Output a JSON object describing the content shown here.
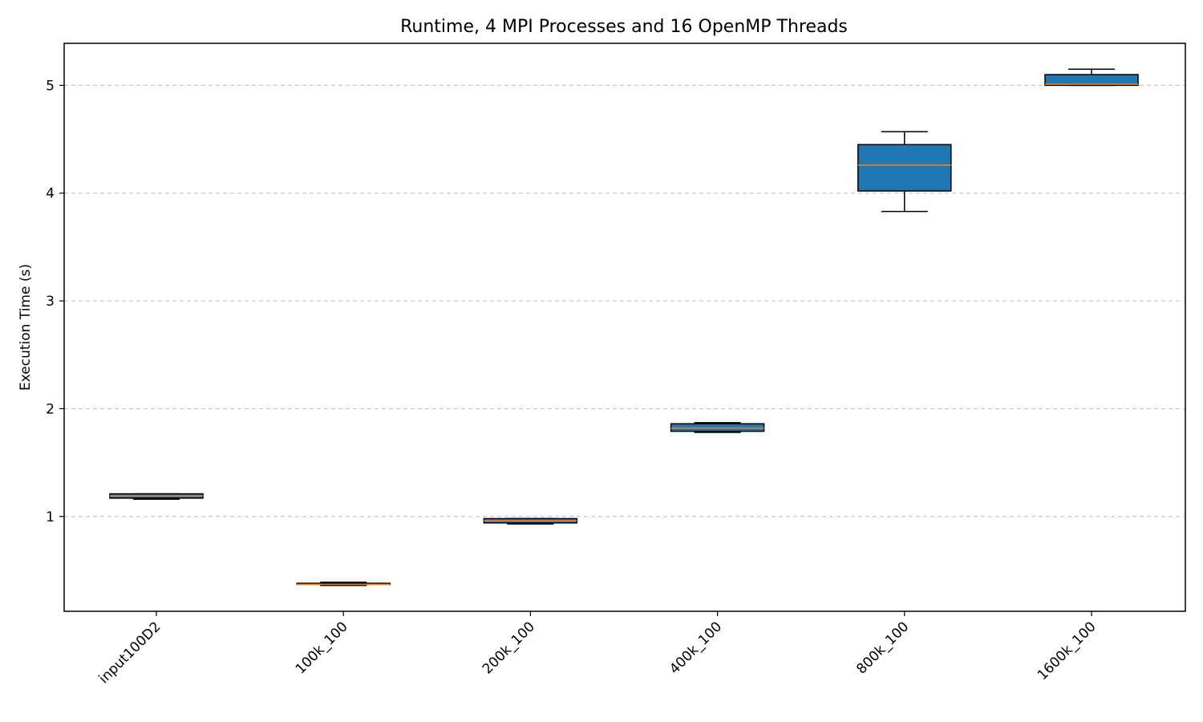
{
  "chart_data": {
    "type": "box",
    "title": "Runtime, 4 MPI Processes and 16 OpenMP Threads",
    "xlabel": "",
    "ylabel": "Execution Time (s)",
    "ylim": [
      0.12,
      5.39
    ],
    "yticks": [
      1,
      2,
      3,
      4,
      5
    ],
    "grid": "y-dashed",
    "categories": [
      "input100D2",
      "100k_100",
      "200k_100",
      "400k_100",
      "800k_100",
      "1600k_100"
    ],
    "boxes": [
      {
        "category": "input100D2",
        "whisker_low": 1.16,
        "q1": 1.17,
        "median": 1.19,
        "q3": 1.21,
        "whisker_high": 1.21
      },
      {
        "category": "100k_100",
        "whisker_low": 0.36,
        "q1": 0.37,
        "median": 0.37,
        "q3": 0.38,
        "whisker_high": 0.39
      },
      {
        "category": "200k_100",
        "whisker_low": 0.93,
        "q1": 0.94,
        "median": 0.96,
        "q3": 0.98,
        "whisker_high": 0.98
      },
      {
        "category": "400k_100",
        "whisker_low": 1.78,
        "q1": 1.79,
        "median": 1.82,
        "q3": 1.86,
        "whisker_high": 1.87
      },
      {
        "category": "800k_100",
        "whisker_low": 3.83,
        "q1": 4.02,
        "median": 4.26,
        "q3": 4.45,
        "whisker_high": 4.57
      },
      {
        "category": "1600k_100",
        "whisker_low": 5.0,
        "q1": 5.0,
        "median": 5.01,
        "q3": 5.1,
        "whisker_high": 5.15
      }
    ],
    "colors": {
      "box_fill": "#1f77b4",
      "median": "#ff7f0e",
      "edge": "#000000",
      "grid": "#b0b0b0"
    }
  }
}
